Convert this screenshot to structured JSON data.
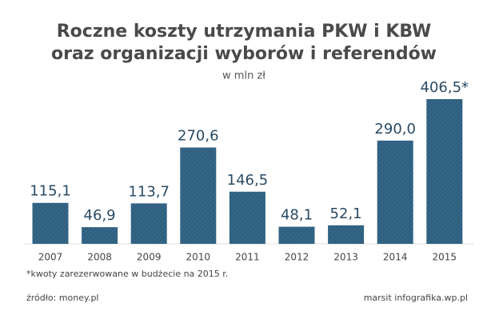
{
  "chart_data": {
    "type": "bar",
    "title": "Roczne koszty utrzymania PKW i KBW",
    "title_line2": "oraz organizacji wyborów i referendów",
    "subtitle": "w mln zł",
    "categories": [
      "2007",
      "2008",
      "2009",
      "2010",
      "2011",
      "2012",
      "2013",
      "2014",
      "2015"
    ],
    "values": [
      115.1,
      46.9,
      113.7,
      270.6,
      146.5,
      48.1,
      52.1,
      290.0,
      406.5
    ],
    "value_labels": [
      "115,1",
      "46,9",
      "113,7",
      "270,6",
      "146,5",
      "48,1",
      "52,1",
      "290,0",
      "406,5*"
    ],
    "color": "#2e5f7f",
    "footnote": "*kwoty zarezerwowane w budżecie na 2015 r.",
    "source": "źródło: money.pl",
    "credit": "marsit infografika.wp.pl"
  }
}
